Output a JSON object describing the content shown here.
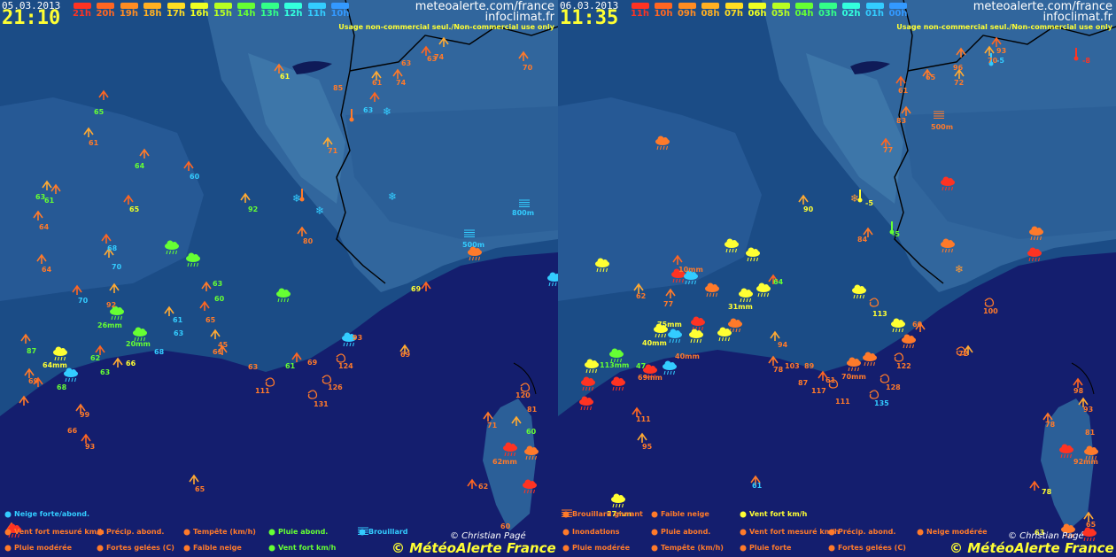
{
  "colors": {
    "sea": "#141e6e",
    "land_low": "#1a4f8a",
    "land_high": "#3d77a8",
    "orange": "#ff7a2a",
    "yellow": "#ffff33",
    "green": "#44ff44",
    "cyan": "#33ccff",
    "red": "#ff3322"
  },
  "icons": {
    "wind": "wind-arrow-icon",
    "rain": "rain-cloud-icon",
    "snow": "snowflake-icon",
    "storm": "storm-spiral-icon",
    "frost": "thermometer-icon",
    "fog": "fog-icon",
    "flag": "wind-flag-icon"
  },
  "panels": [
    {
      "date": "05.03.2013",
      "time": "21:10",
      "site1": "meteoalerte.com/france",
      "site2": "infoclimat.fr",
      "usage": "Usage non-commercial seul./Non-commercial use only",
      "hours": [
        {
          "label": "21h",
          "color": "#ff3322"
        },
        {
          "label": "20h",
          "color": "#ff6622"
        },
        {
          "label": "19h",
          "color": "#ff8c22"
        },
        {
          "label": "18h",
          "color": "#ffb022"
        },
        {
          "label": "17h",
          "color": "#ffdd22"
        },
        {
          "label": "16h",
          "color": "#eeff22"
        },
        {
          "label": "15h",
          "color": "#b8ff22"
        },
        {
          "label": "14h",
          "color": "#66ff33"
        },
        {
          "label": "13h",
          "color": "#33ff88"
        },
        {
          "label": "12h",
          "color": "#33ffdd"
        },
        {
          "label": "11h",
          "color": "#33ccff"
        },
        {
          "label": "10h",
          "color": "#3399ff"
        }
      ],
      "labels": [
        {
          "t": "61",
          "c": "#ffff33"
        },
        {
          "t": "65",
          "c": "#66ff33"
        },
        {
          "t": "61",
          "c": "#ff7a2a"
        },
        {
          "t": "64",
          "c": "#66ff33"
        },
        {
          "t": "60",
          "c": "#33ccff"
        },
        {
          "t": "63",
          "c": "#66ff33"
        },
        {
          "t": "61",
          "c": "#66ff33"
        },
        {
          "t": "65",
          "c": "#eeff22"
        },
        {
          "t": "92",
          "c": "#66ff33"
        },
        {
          "t": "64",
          "c": "#ff7a2a"
        },
        {
          "t": "68",
          "c": "#33ccff"
        },
        {
          "t": "70",
          "c": "#33ccff"
        },
        {
          "t": "64",
          "c": "#ff7a2a"
        },
        {
          "t": "70",
          "c": "#33ccff"
        },
        {
          "t": "92",
          "c": "#ff7a2a"
        },
        {
          "t": "26mm",
          "c": "#66ff33"
        },
        {
          "t": "20mm",
          "c": "#66ff33"
        },
        {
          "t": "87",
          "c": "#66ff33"
        },
        {
          "t": "64mm",
          "c": "#ffff33"
        },
        {
          "t": "62",
          "c": "#66ff33"
        },
        {
          "t": "63",
          "c": "#66ff33"
        },
        {
          "t": "66",
          "c": "#ffff33"
        },
        {
          "t": "68",
          "c": "#33ccff"
        },
        {
          "t": "69",
          "c": "#ff7a2a"
        },
        {
          "t": "68",
          "c": "#66ff33"
        },
        {
          "t": "61",
          "c": "#33ccff"
        },
        {
          "t": "63",
          "c": "#33ccff"
        },
        {
          "t": "63",
          "c": "#66ff33"
        },
        {
          "t": "60",
          "c": "#66ff33"
        },
        {
          "t": "65",
          "c": "#ff7a2a"
        },
        {
          "t": "85",
          "c": "#ff7a2a"
        },
        {
          "t": "61",
          "c": "#ff7a2a"
        },
        {
          "t": "74",
          "c": "#ff7a2a"
        },
        {
          "t": "63",
          "c": "#ff7a2a"
        },
        {
          "t": "63",
          "c": "#ff7a2a"
        },
        {
          "t": "74",
          "c": "#ff7a2a"
        },
        {
          "t": "70",
          "c": "#ff7a2a"
        },
        {
          "t": "63",
          "c": "#33ccff"
        },
        {
          "t": "71",
          "c": "#ff7a2a"
        },
        {
          "t": "80",
          "c": "#ff7a2a"
        },
        {
          "t": "69",
          "c": "#ffff33"
        },
        {
          "t": "800m",
          "c": "#33ccff"
        },
        {
          "t": "500m",
          "c": "#33ccff"
        },
        {
          "t": "93",
          "c": "#ff7a2a"
        },
        {
          "t": "124",
          "c": "#ff7a2a"
        },
        {
          "t": "126",
          "c": "#ff7a2a"
        },
        {
          "t": "131",
          "c": "#ff7a2a"
        },
        {
          "t": "111",
          "c": "#ff7a2a"
        },
        {
          "t": "69",
          "c": "#ff7a2a"
        },
        {
          "t": "99",
          "c": "#ff7a2a"
        },
        {
          "t": "66",
          "c": "#ff7a2a"
        },
        {
          "t": "93",
          "c": "#ff7a2a"
        },
        {
          "t": "65",
          "c": "#ff7a2a"
        },
        {
          "t": "120",
          "c": "#ff7a2a"
        },
        {
          "t": "81",
          "c": "#ff7a2a"
        },
        {
          "t": "71",
          "c": "#ff7a2a"
        },
        {
          "t": "60",
          "c": "#66ff33"
        },
        {
          "t": "62mm",
          "c": "#ff7a2a"
        },
        {
          "t": "62",
          "c": "#ff7a2a"
        },
        {
          "t": "60",
          "c": "#ff7a2a"
        },
        {
          "t": "45",
          "c": "#ff7a2a"
        },
        {
          "t": "61",
          "c": "#ff7a2a"
        },
        {
          "t": "61",
          "c": "#66ff33"
        },
        {
          "t": "69",
          "c": "#ff7a2a"
        },
        {
          "t": "63",
          "c": "#ff7a2a"
        }
      ],
      "legend": [
        {
          "text": "Neige forte/abond.",
          "color": "#33ccff"
        },
        {
          "text": "Vent fort mesuré km/h",
          "color": "#ff7a2a"
        },
        {
          "text": "Précip. abond.",
          "color": "#ff7a2a"
        },
        {
          "text": "Tempête (km/h)",
          "color": "#ff7a2a"
        },
        {
          "text": "Pluie abond.",
          "color": "#66ff33"
        },
        {
          "text": "Brouillard",
          "color": "#33ccff"
        },
        {
          "text": "Pluie modérée",
          "color": "#ff7a2a"
        },
        {
          "text": "Fortes gelées (C)",
          "color": "#ff7a2a"
        },
        {
          "text": "Faible neige",
          "color": "#ff7a2a"
        },
        {
          "text": "Vent fort km/h",
          "color": "#66ff33"
        }
      ],
      "credit": "© Christian Pagé",
      "brand": "© MétéoAlerte France"
    },
    {
      "date": "06.03.2013",
      "time": "11:35",
      "site1": "meteoalerte.com/france",
      "site2": "infoclimat.fr",
      "usage": "Usage non-commercial seul./Non-commercial use only",
      "hours": [
        {
          "label": "11h",
          "color": "#ff3322"
        },
        {
          "label": "10h",
          "color": "#ff6622"
        },
        {
          "label": "09h",
          "color": "#ff8c22"
        },
        {
          "label": "08h",
          "color": "#ffb022"
        },
        {
          "label": "07h",
          "color": "#ffdd22"
        },
        {
          "label": "06h",
          "color": "#eeff22"
        },
        {
          "label": "05h",
          "color": "#b8ff22"
        },
        {
          "label": "04h",
          "color": "#66ff33"
        },
        {
          "label": "03h",
          "color": "#33ff88"
        },
        {
          "label": "02h",
          "color": "#33ffdd"
        },
        {
          "label": "01h",
          "color": "#33ccff"
        },
        {
          "label": "00h",
          "color": "#3399ff"
        }
      ],
      "labels": [
        {
          "t": "96",
          "c": "#ff7a2a"
        },
        {
          "t": "93",
          "c": "#ff7a2a"
        },
        {
          "t": "70",
          "c": "#ff7a2a"
        },
        {
          "t": "-5",
          "c": "#33ccff"
        },
        {
          "t": "-8",
          "c": "#ff3322"
        },
        {
          "t": "65",
          "c": "#ff7a2a"
        },
        {
          "t": "61",
          "c": "#ff7a2a"
        },
        {
          "t": "72",
          "c": "#ff7a2a"
        },
        {
          "t": "83",
          "c": "#ff7a2a"
        },
        {
          "t": "500m",
          "c": "#ff7a2a"
        },
        {
          "t": "77",
          "c": "#ff7a2a"
        },
        {
          "t": "90",
          "c": "#ffff33"
        },
        {
          "t": "-5",
          "c": "#ffff33"
        },
        {
          "t": "-5",
          "c": "#66ff33"
        },
        {
          "t": "84",
          "c": "#ff7a2a"
        },
        {
          "t": "10mm",
          "c": "#ff7a2a"
        },
        {
          "t": "64",
          "c": "#66ff33"
        },
        {
          "t": "62",
          "c": "#ff7a2a"
        },
        {
          "t": "77",
          "c": "#ff7a2a"
        },
        {
          "t": "31mm",
          "c": "#ffff33"
        },
        {
          "t": "75mm",
          "c": "#ffff33"
        },
        {
          "t": "40mm",
          "c": "#ffff33"
        },
        {
          "t": "113",
          "c": "#ffff33"
        },
        {
          "t": "100",
          "c": "#ff7a2a"
        },
        {
          "t": "60",
          "c": "#ff7a2a"
        },
        {
          "t": "113mm",
          "c": "#66ff33"
        },
        {
          "t": "47",
          "c": "#66ff33"
        },
        {
          "t": "69mm",
          "c": "#ff7a2a"
        },
        {
          "t": "40mm",
          "c": "#ff7a2a"
        },
        {
          "t": "94",
          "c": "#ff7a2a"
        },
        {
          "t": "78",
          "c": "#ff7a2a"
        },
        {
          "t": "103",
          "c": "#ff7a2a"
        },
        {
          "t": "89",
          "c": "#ff7a2a"
        },
        {
          "t": "87",
          "c": "#ff7a2a"
        },
        {
          "t": "117",
          "c": "#ff7a2a"
        },
        {
          "t": "111",
          "c": "#ff7a2a"
        },
        {
          "t": "61",
          "c": "#ff7a2a"
        },
        {
          "t": "70mm",
          "c": "#ff7a2a"
        },
        {
          "t": "122",
          "c": "#ff7a2a"
        },
        {
          "t": "128",
          "c": "#ff7a2a"
        },
        {
          "t": "135",
          "c": "#33ccff"
        },
        {
          "t": "72",
          "c": "#ff7a2a"
        },
        {
          "t": "111",
          "c": "#ff7a2a"
        },
        {
          "t": "95",
          "c": "#ff7a2a"
        },
        {
          "t": "61",
          "c": "#33ccff"
        },
        {
          "t": "27mm",
          "c": "#ffff33"
        },
        {
          "t": "98",
          "c": "#ff7a2a"
        },
        {
          "t": "93",
          "c": "#ff7a2a"
        },
        {
          "t": "78",
          "c": "#ff7a2a"
        },
        {
          "t": "81",
          "c": "#ff7a2a"
        },
        {
          "t": "92mm",
          "c": "#ff7a2a"
        },
        {
          "t": "78",
          "c": "#ffff33"
        },
        {
          "t": "63",
          "c": "#ffff33"
        },
        {
          "t": "65",
          "c": "#ff7a2a"
        }
      ],
      "legend": [
        {
          "text": "Brouillard givrant",
          "color": "#ff7a2a"
        },
        {
          "text": "Faible neige",
          "color": "#ff7a2a"
        },
        {
          "text": "Vent fort km/h",
          "color": "#ffff33"
        },
        {
          "text": "Inondations",
          "color": "#ff7a2a"
        },
        {
          "text": "Pluie abond.",
          "color": "#ff7a2a"
        },
        {
          "text": "Vent fort mesuré km/h",
          "color": "#ff7a2a"
        },
        {
          "text": "Précip. abond.",
          "color": "#ff7a2a"
        },
        {
          "text": "Neige modérée",
          "color": "#ff7a2a"
        },
        {
          "text": "Pluie modérée",
          "color": "#ff7a2a"
        },
        {
          "text": "Tempête (km/h)",
          "color": "#ff7a2a"
        },
        {
          "text": "Pluie forte",
          "color": "#ff7a2a"
        },
        {
          "text": "Fortes gelées (C)",
          "color": "#ff7a2a"
        }
      ],
      "credit": "© Christian Pagé",
      "brand": "© MétéoAlerte France"
    }
  ]
}
